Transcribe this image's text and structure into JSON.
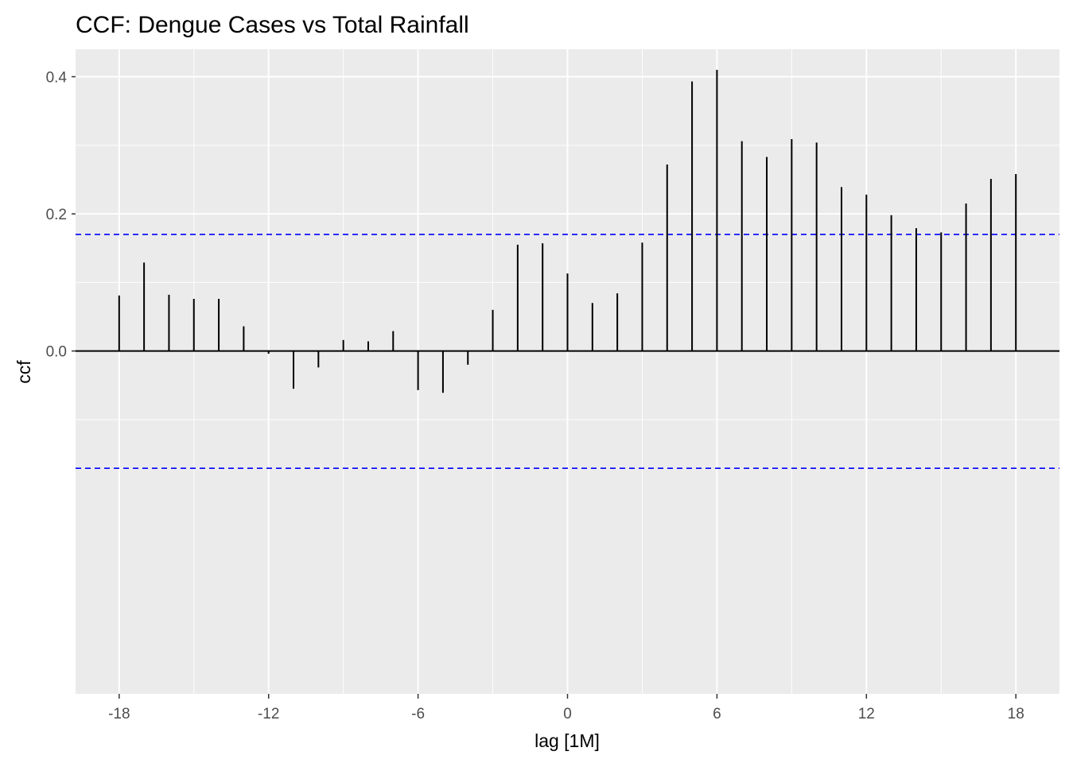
{
  "chart_data": {
    "type": "bar",
    "title": "CCF: Dengue Cases vs Total Rainfall",
    "xlabel": "lag [1M]",
    "ylabel": "ccf",
    "xlim": [
      -19.75,
      19.75
    ],
    "ylim": [
      -0.5,
      0.44
    ],
    "x_ticks": [
      -18,
      -12,
      -6,
      0,
      6,
      12,
      18
    ],
    "x_tick_labels": [
      "-18",
      "-12",
      "-6",
      "0",
      "6",
      "12",
      "18"
    ],
    "y_ticks": [
      0.0,
      0.2,
      0.4
    ],
    "y_tick_labels": [
      "0.0",
      "0.2",
      "0.4"
    ],
    "grid": true,
    "confidence_bounds": [
      0.17,
      -0.171
    ],
    "lags": [
      -18,
      -17,
      -16,
      -15,
      -14,
      -13,
      -12,
      -11,
      -10,
      -9,
      -8,
      -7,
      -6,
      -5,
      -4,
      -3,
      -2,
      -1,
      0,
      1,
      2,
      3,
      4,
      5,
      6,
      7,
      8,
      9,
      10,
      11,
      12,
      13,
      14,
      15,
      16,
      17,
      18
    ],
    "values": [
      0.081,
      0.129,
      0.082,
      0.076,
      0.076,
      0.036,
      -0.004,
      -0.055,
      -0.024,
      0.016,
      0.014,
      0.029,
      -0.057,
      -0.061,
      -0.02,
      0.06,
      0.155,
      0.157,
      0.113,
      0.07,
      0.084,
      0.158,
      0.272,
      0.393,
      0.41,
      0.306,
      0.283,
      0.309,
      0.304,
      0.239,
      0.228,
      0.198,
      0.179,
      0.173,
      0.215,
      0.251,
      0.258
    ],
    "colors": {
      "panel": "#ebebeb",
      "grid": "#ffffff",
      "bar": "#000000",
      "bound": "#0000ff"
    }
  }
}
